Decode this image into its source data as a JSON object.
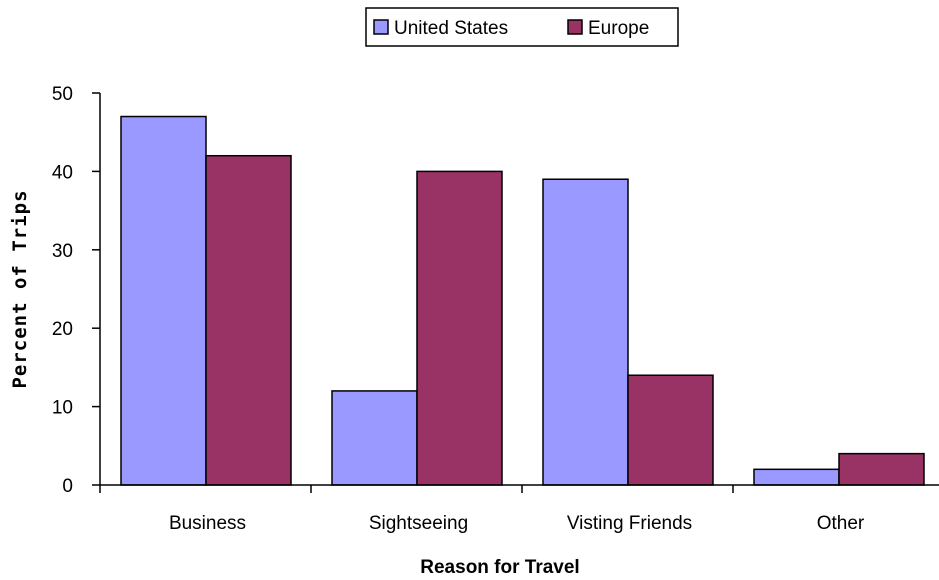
{
  "chart_data": {
    "type": "bar",
    "categories": [
      "Business",
      "Sightseeing",
      "Visting Friends",
      "Other"
    ],
    "series": [
      {
        "name": "United States",
        "color": "#9999ff",
        "values": [
          47,
          12,
          39,
          2
        ]
      },
      {
        "name": "Europe",
        "color": "#993366",
        "values": [
          42,
          40,
          14,
          4
        ]
      }
    ],
    "xlabel": "Reason for Travel",
    "ylabel": "Percent of Trips",
    "ylim": [
      0,
      50
    ],
    "yticks": [
      "0",
      "10",
      "20",
      "30",
      "40",
      "50"
    ],
    "grid": false,
    "legend_position": "top-center"
  }
}
